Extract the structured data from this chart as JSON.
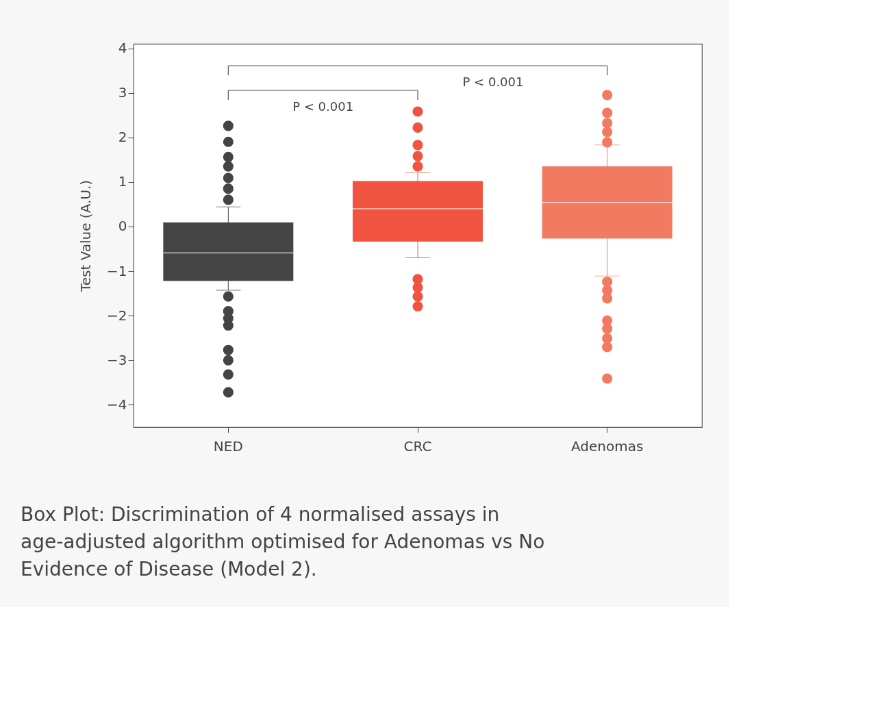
{
  "chart_data": {
    "type": "box",
    "categories": [
      "NED",
      "CRC",
      "Adenomas"
    ],
    "colors": [
      "#444444",
      "#f05440",
      "#f27a60"
    ],
    "boxes": [
      {
        "low": -1.43,
        "q1": -1.22,
        "median": -0.59,
        "q3": 0.09,
        "high": 0.44,
        "outliers": [
          2.26,
          1.9,
          1.56,
          1.35,
          1.09,
          0.85,
          0.6,
          -1.57,
          -1.9,
          -2.06,
          -2.22,
          -2.77,
          -3.0,
          -3.32,
          -3.72
        ]
      },
      {
        "low": -0.7,
        "q1": -0.34,
        "median": 0.4,
        "q3": 1.02,
        "high": 1.21,
        "outliers": [
          2.58,
          2.22,
          1.83,
          1.58,
          1.35,
          -1.18,
          -1.37,
          -1.57,
          -1.79
        ]
      },
      {
        "low": -1.11,
        "q1": -0.27,
        "median": 0.54,
        "q3": 1.35,
        "high": 1.83,
        "outliers": [
          2.95,
          2.55,
          2.32,
          2.12,
          1.89,
          -1.24,
          -1.43,
          -1.61,
          -2.11,
          -2.29,
          -2.51,
          -2.7,
          -3.41
        ]
      }
    ],
    "ylabel": "Test Value (A.U.)",
    "ylim": [
      -4.5,
      4.1
    ],
    "yticks": [
      -4,
      -3,
      -2,
      -1,
      0,
      1,
      2,
      3,
      4
    ],
    "grid": false,
    "legend": false,
    "annotations": [
      "P < 0.001",
      "P < 0.001",
      "Box Plot: Discrimination of 4 normalised assays in age-adjusted algorithm optimised for Adenomas vs No Evidence of Disease (Model 2)."
    ]
  }
}
